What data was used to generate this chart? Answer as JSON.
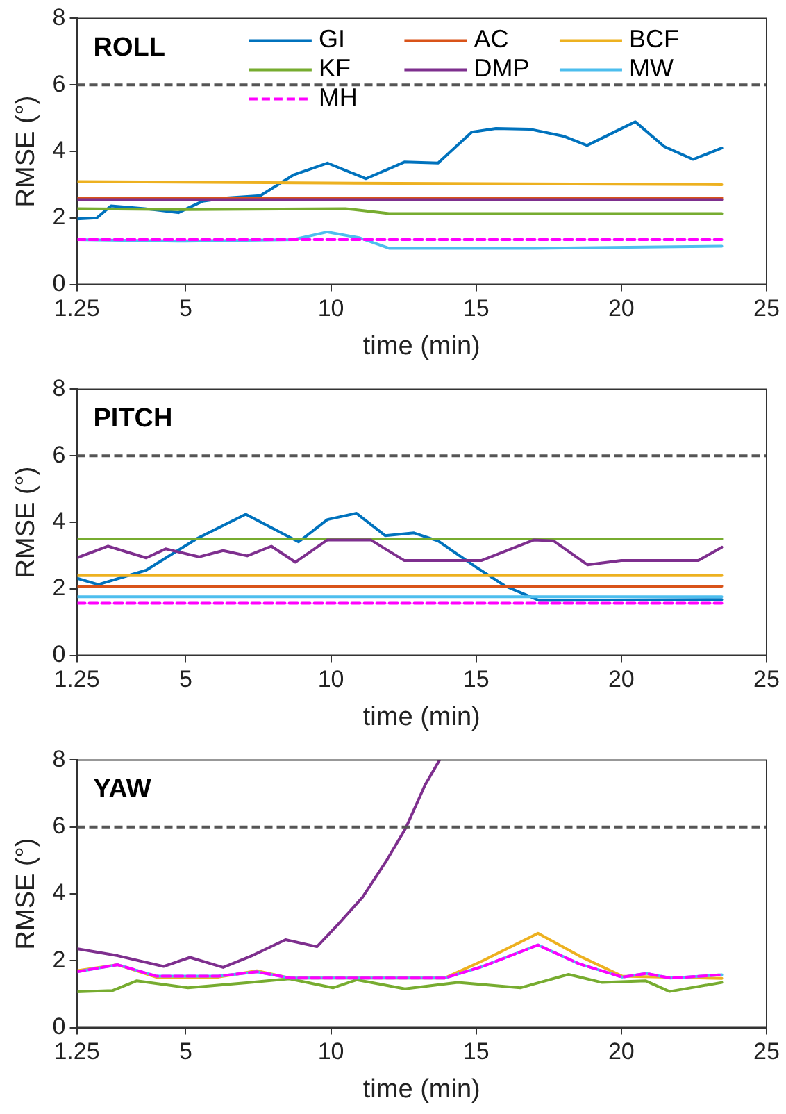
{
  "chart_data": [
    {
      "type": "line",
      "title": "ROLL",
      "xlabel": "time (min)",
      "ylabel": "RMSE (°)",
      "xlim": [
        1.25,
        25
      ],
      "xticks": [
        1.25,
        5,
        10,
        15,
        20,
        25
      ],
      "ylim": [
        0,
        8
      ],
      "yticks": [
        0,
        2,
        4,
        6,
        8
      ],
      "grid": false,
      "legend": "top right",
      "marker": "none",
      "ref_lines": [
        {
          "axis": "y",
          "value": 6,
          "color": "#555555",
          "line_style": "dashed"
        }
      ],
      "series": [
        {
          "name": "GI",
          "color": "#0072bd",
          "x": [
            1.25,
            1.94,
            2.43,
            3.59,
            4.75,
            5.58,
            6.41,
            7.57,
            8.73,
            9.88,
            11.21,
            12.53,
            13.69,
            14.85,
            15.68,
            16.84,
            18.0,
            18.82,
            20.48,
            21.47,
            22.47,
            23.46
          ],
          "values": [
            1.97,
            2.0,
            2.36,
            2.28,
            2.16,
            2.5,
            2.6,
            2.67,
            3.3,
            3.65,
            3.18,
            3.68,
            3.65,
            4.58,
            4.69,
            4.67,
            4.46,
            4.18,
            4.89,
            4.15,
            3.76,
            4.1
          ]
        },
        {
          "name": "AC",
          "color": "#d95319",
          "x": [
            1.25,
            23.46
          ],
          "values": [
            2.6,
            2.6
          ]
        },
        {
          "name": "BCF",
          "color": "#edb120",
          "x": [
            1.25,
            9.88,
            23.46
          ],
          "values": [
            3.09,
            3.05,
            3.0
          ]
        },
        {
          "name": "KF",
          "color": "#77ac30",
          "x": [
            1.25,
            5.0,
            10.5,
            12.0,
            23.46
          ],
          "values": [
            2.28,
            2.25,
            2.28,
            2.13,
            2.13
          ]
        },
        {
          "name": "DMP",
          "color": "#7e2f8e",
          "x": [
            1.25,
            23.46
          ],
          "values": [
            2.55,
            2.55
          ]
        },
        {
          "name": "MW",
          "color": "#4dbeee",
          "x": [
            1.25,
            5.0,
            8.7,
            9.88,
            11.0,
            12.0,
            17.0,
            23.46
          ],
          "values": [
            1.35,
            1.3,
            1.35,
            1.58,
            1.4,
            1.09,
            1.09,
            1.15
          ]
        },
        {
          "name": "MH",
          "color": "#ff00ff",
          "line_style": "dashed",
          "x": [
            1.25,
            23.46
          ],
          "values": [
            1.35,
            1.35
          ]
        }
      ]
    },
    {
      "type": "line",
      "title": "PITCH",
      "xlabel": "time (min)",
      "ylabel": "RMSE (°)",
      "xlim": [
        1.25,
        25
      ],
      "xticks": [
        1.25,
        5,
        10,
        15,
        20,
        25
      ],
      "ylim": [
        0,
        8
      ],
      "yticks": [
        0,
        2,
        4,
        6,
        8
      ],
      "grid": false,
      "marker": "none",
      "ref_lines": [
        {
          "axis": "y",
          "value": 6,
          "color": "#555555",
          "line_style": "dashed"
        }
      ],
      "series": [
        {
          "color": "#0072bd",
          "x": [
            1.25,
            1.99,
            3.64,
            5.41,
            7.07,
            8.89,
            9.88,
            10.88,
            11.87,
            12.86,
            13.69,
            15.02,
            16.01,
            17.17,
            23.46
          ],
          "values": [
            2.32,
            2.13,
            2.56,
            3.52,
            4.24,
            3.41,
            4.08,
            4.27,
            3.6,
            3.68,
            3.44,
            2.64,
            2.08,
            1.65,
            1.68
          ]
        },
        {
          "color": "#d95319",
          "x": [
            1.25,
            23.46
          ],
          "values": [
            2.08,
            2.08
          ]
        },
        {
          "color": "#edb120",
          "x": [
            1.25,
            23.46
          ],
          "values": [
            2.4,
            2.4
          ]
        },
        {
          "color": "#77ac30",
          "x": [
            1.25,
            23.46
          ],
          "values": [
            3.5,
            3.5
          ]
        },
        {
          "color": "#7e2f8e",
          "x": [
            1.25,
            2.33,
            3.64,
            4.31,
            5.46,
            6.29,
            7.12,
            7.95,
            8.78,
            9.88,
            11.37,
            12.53,
            15.18,
            17.0,
            17.67,
            18.84,
            20.0,
            22.65,
            23.46
          ],
          "values": [
            2.93,
            3.28,
            2.93,
            3.2,
            2.96,
            3.15,
            2.99,
            3.28,
            2.8,
            3.47,
            3.47,
            2.85,
            2.85,
            3.47,
            3.44,
            2.72,
            2.85,
            2.85,
            3.25
          ]
        },
        {
          "color": "#4dbeee",
          "x": [
            1.25,
            23.46
          ],
          "values": [
            1.76,
            1.76
          ]
        },
        {
          "color": "#ff00ff",
          "line_style": "dashed",
          "x": [
            1.25,
            23.46
          ],
          "values": [
            1.57,
            1.57
          ]
        }
      ]
    },
    {
      "type": "line",
      "title": "YAW",
      "xlabel": "time (min)",
      "ylabel": "RMSE (°)",
      "xlim": [
        1.25,
        25
      ],
      "xticks": [
        1.25,
        5,
        10,
        15,
        20,
        25
      ],
      "ylim": [
        0,
        8
      ],
      "yticks": [
        0,
        2,
        4,
        6,
        8
      ],
      "grid": false,
      "marker": "none",
      "ref_lines": [
        {
          "axis": "y",
          "value": 6,
          "color": "#555555",
          "line_style": "dashed"
        }
      ],
      "series": [
        {
          "color": "#edb120",
          "x": [
            1.25,
            2.66,
            3.98,
            6.13,
            7.45,
            8.61,
            13.91,
            15.23,
            17.13,
            18.54,
            20.03,
            23.46
          ],
          "values": [
            1.7,
            1.88,
            1.51,
            1.51,
            1.7,
            1.48,
            1.48,
            2.0,
            2.82,
            2.15,
            1.54,
            1.47
          ]
        },
        {
          "color": "#77ac30",
          "x": [
            1.25,
            2.49,
            3.32,
            5.08,
            7.24,
            8.57,
            10.07,
            10.89,
            12.55,
            14.37,
            16.52,
            18.18,
            19.34,
            20.83,
            21.66,
            23.46
          ],
          "values": [
            1.07,
            1.11,
            1.4,
            1.19,
            1.35,
            1.46,
            1.19,
            1.43,
            1.16,
            1.35,
            1.19,
            1.59,
            1.35,
            1.4,
            1.08,
            1.35
          ]
        },
        {
          "color": "#7e2f8e",
          "x": [
            1.25,
            2.66,
            4.24,
            5.15,
            6.29,
            7.28,
            8.44,
            9.52,
            10.26,
            11.09,
            11.92,
            12.58,
            13.24,
            13.74
          ],
          "values": [
            2.36,
            2.15,
            1.83,
            2.1,
            1.8,
            2.15,
            2.63,
            2.42,
            3.1,
            3.9,
            5.0,
            5.97,
            7.25,
            8
          ]
        },
        {
          "color": "#4dbeee",
          "x": [
            1.25,
            2.66,
            3.98,
            6.13,
            7.45,
            8.61,
            13.91,
            15.23,
            17.13,
            18.54,
            20.03,
            20.86,
            21.69,
            23.46
          ],
          "values": [
            1.67,
            1.88,
            1.54,
            1.54,
            1.67,
            1.48,
            1.48,
            1.83,
            2.47,
            1.91,
            1.51,
            1.62,
            1.48,
            1.58
          ]
        },
        {
          "color": "#ff00ff",
          "line_style": "dashed",
          "x": [
            1.25,
            2.66,
            3.98,
            6.13,
            7.45,
            8.61,
            13.91,
            15.23,
            17.13,
            18.54,
            20.03,
            20.86,
            21.69,
            23.46
          ],
          "values": [
            1.67,
            1.88,
            1.54,
            1.54,
            1.67,
            1.48,
            1.48,
            1.83,
            2.47,
            1.91,
            1.51,
            1.62,
            1.48,
            1.58
          ]
        }
      ]
    }
  ]
}
